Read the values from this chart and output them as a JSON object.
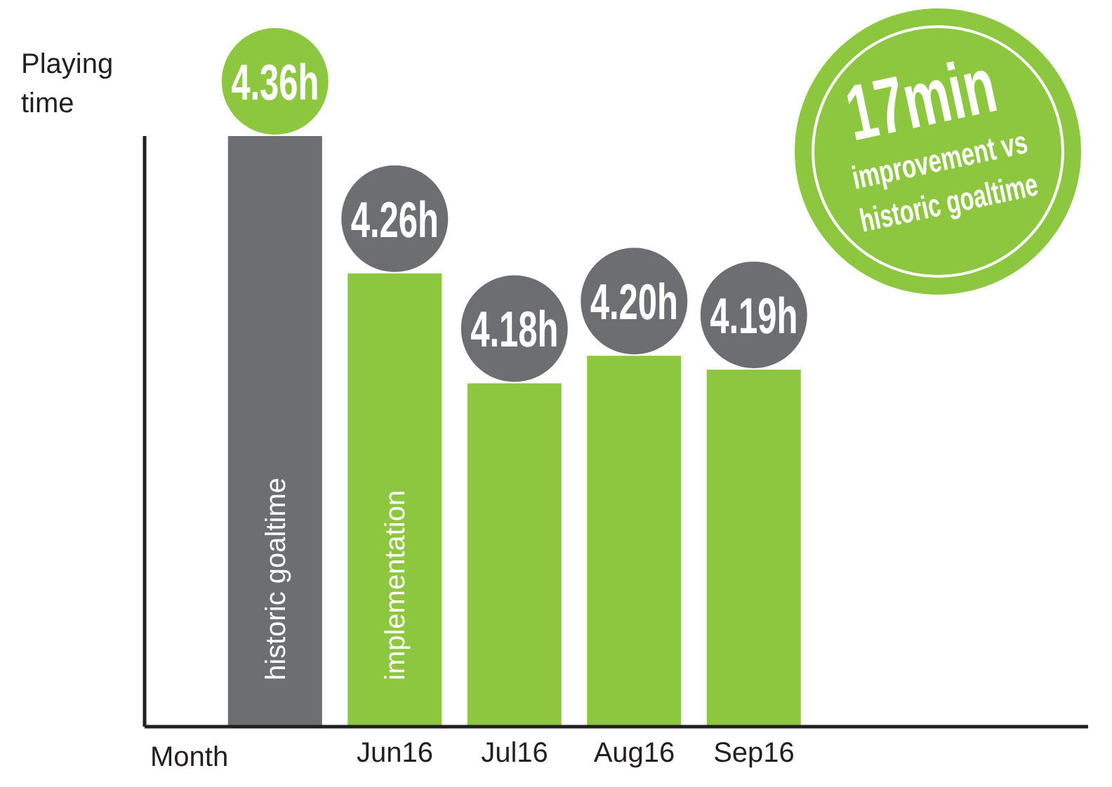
{
  "chart_data": {
    "type": "bar",
    "xlabel": "Month",
    "ylabel": "Playing time",
    "categories": [
      null,
      "Jun16",
      "Jul16",
      "Aug16",
      "Sep16"
    ],
    "values": [
      4.36,
      4.26,
      4.18,
      4.2,
      4.19
    ],
    "value_labels": [
      "4.36h",
      "4.26h",
      "4.18h",
      "4.20h",
      "4.19h"
    ],
    "colors": [
      "#6d6e71",
      "#8dc63f",
      "#8dc63f",
      "#8dc63f",
      "#8dc63f"
    ],
    "ylim": [
      3.93,
      4.36
    ],
    "tick_labels": "x",
    "annotations": [
      "17min improvement vs historic goaltime",
      "historic goaltime",
      "implementation"
    ]
  }
}
